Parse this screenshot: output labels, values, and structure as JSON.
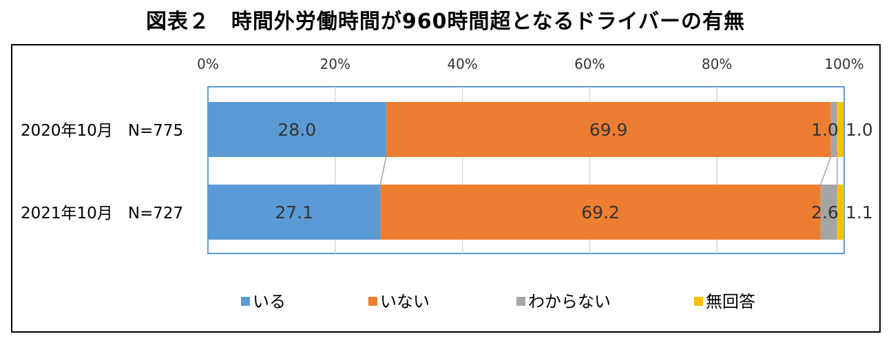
{
  "chart_data": {
    "type": "bar",
    "orientation": "horizontal",
    "stacked": true,
    "title": "図表２　時間外労働時間が960時間超となるドライバーの有無",
    "xlim": [
      0,
      100
    ],
    "xticks": [
      "0%",
      "20%",
      "40%",
      "60%",
      "80%",
      "100%"
    ],
    "categories": [
      {
        "period": "2020年10月",
        "n": "N=775"
      },
      {
        "period": "2021年10月",
        "n": "N=727"
      }
    ],
    "series": [
      {
        "name": "いる",
        "color": "#5B9BD5",
        "values": [
          28.0,
          27.1
        ],
        "labels": [
          "28.0",
          "27.1"
        ]
      },
      {
        "name": "いない",
        "color": "#ED7D31",
        "values": [
          69.9,
          69.2
        ],
        "labels": [
          "69.9",
          "69.2"
        ]
      },
      {
        "name": "わからない",
        "color": "#A5A5A5",
        "values": [
          1.0,
          2.6
        ],
        "labels": [
          "1.0",
          "2.6"
        ]
      },
      {
        "name": "無回答",
        "color": "#FFC000",
        "values": [
          1.0,
          1.1
        ],
        "labels": [
          "1.0",
          "1.1"
        ]
      }
    ],
    "legend_position": "bottom"
  }
}
